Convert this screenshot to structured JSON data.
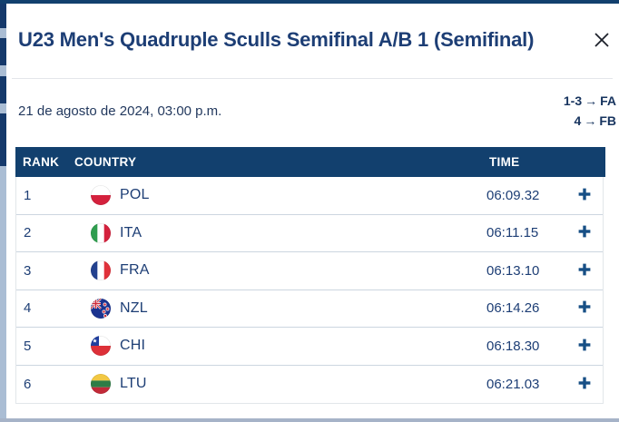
{
  "modal": {
    "title": "U23 Men's Quadruple Sculls Semifinal A/B 1 (Semifinal)"
  },
  "info": {
    "datetime": "21 de agosto de 2024, 03:00 p.m.",
    "progressions": [
      {
        "places": "1-3",
        "arrow": "→",
        "destination": "FA"
      },
      {
        "places": "4",
        "arrow": "→",
        "destination": "FB"
      }
    ]
  },
  "table": {
    "headers": {
      "rank": "RANK",
      "country": "COUNTRY",
      "time": "TIME"
    },
    "rows": [
      {
        "rank": "1",
        "country": "POL",
        "time": "06:09.32"
      },
      {
        "rank": "2",
        "country": "ITA",
        "time": "06:11.15"
      },
      {
        "rank": "3",
        "country": "FRA",
        "time": "06:13.10"
      },
      {
        "rank": "4",
        "country": "NZL",
        "time": "06:14.26"
      },
      {
        "rank": "5",
        "country": "CHI",
        "time": "06:18.30"
      },
      {
        "rank": "6",
        "country": "LTU",
        "time": "06:21.03"
      }
    ]
  },
  "colors": {
    "header_navy": "#12406e",
    "text_navy": "#1d3e75",
    "accent_bar": "#12406e",
    "bottom_bar": "#a6b3c8",
    "row_border": "#ccd6e0",
    "plus_blue": "#174f85"
  }
}
